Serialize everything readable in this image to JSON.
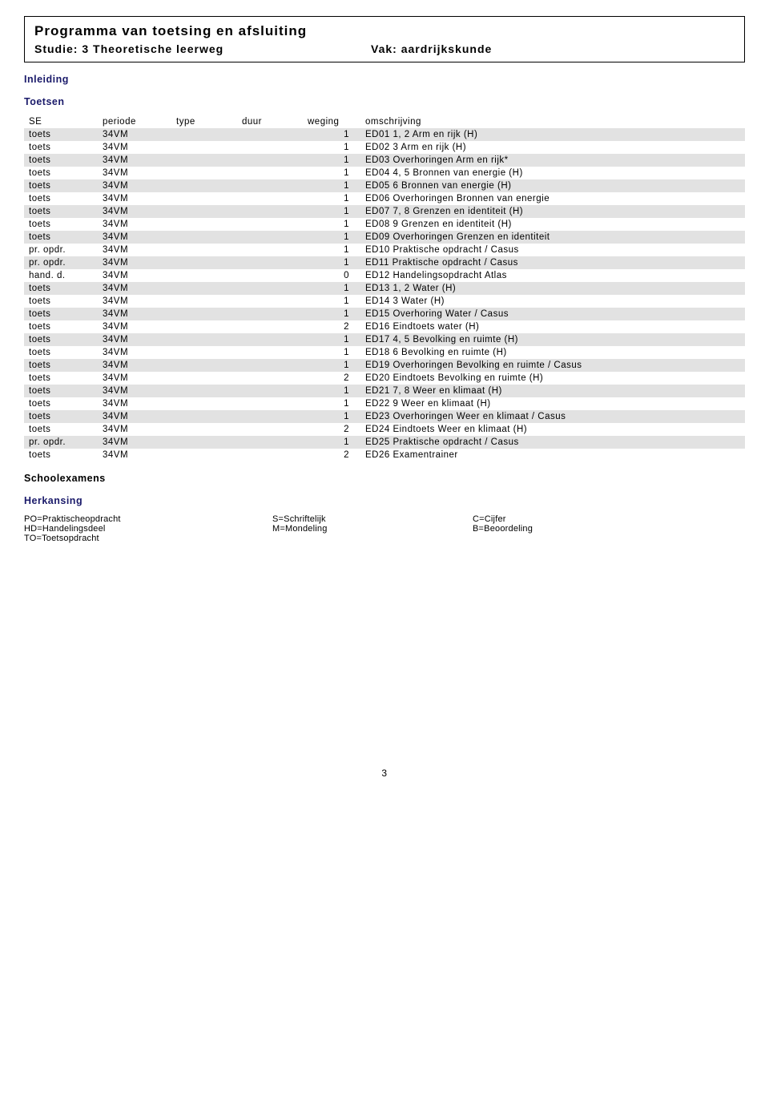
{
  "header": {
    "title": "Programma van toetsing en afsluiting",
    "studie_label": "Studie:",
    "studie_value": "3 Theoretische leerweg",
    "vak_label": "Vak:",
    "vak_value": "aardrijkskunde"
  },
  "sections": {
    "inleiding": "Inleiding",
    "toetsen": "Toetsen",
    "schoolexamens": "Schoolexamens",
    "herkansing": "Herkansing"
  },
  "columns": {
    "se": "SE",
    "periode": "periode",
    "type": "type",
    "duur": "duur",
    "weging": "weging",
    "omschrijving": "omschrijving"
  },
  "rows": [
    {
      "se": "toets",
      "periode": "34VM",
      "type": "",
      "duur": "",
      "weging": "1",
      "oms": "ED01 1, 2 Arm en rijk (H)"
    },
    {
      "se": "toets",
      "periode": "34VM",
      "type": "",
      "duur": "",
      "weging": "1",
      "oms": "ED02 3 Arm en rijk (H)"
    },
    {
      "se": "toets",
      "periode": "34VM",
      "type": "",
      "duur": "",
      "weging": "1",
      "oms": "ED03 Overhoringen Arm en rijk*"
    },
    {
      "se": "toets",
      "periode": "34VM",
      "type": "",
      "duur": "",
      "weging": "1",
      "oms": "ED04 4, 5 Bronnen van energie (H)"
    },
    {
      "se": "toets",
      "periode": "34VM",
      "type": "",
      "duur": "",
      "weging": "1",
      "oms": "ED05 6 Bronnen van energie (H)"
    },
    {
      "se": "toets",
      "periode": "34VM",
      "type": "",
      "duur": "",
      "weging": "1",
      "oms": "ED06 Overhoringen Bronnen van energie"
    },
    {
      "se": "toets",
      "periode": "34VM",
      "type": "",
      "duur": "",
      "weging": "1",
      "oms": "ED07 7, 8 Grenzen en identiteit (H)"
    },
    {
      "se": "toets",
      "periode": "34VM",
      "type": "",
      "duur": "",
      "weging": "1",
      "oms": "ED08 9 Grenzen en identiteit (H)"
    },
    {
      "se": "toets",
      "periode": "34VM",
      "type": "",
      "duur": "",
      "weging": "1",
      "oms": "ED09 Overhoringen Grenzen en identiteit"
    },
    {
      "se": "pr. opdr.",
      "periode": "34VM",
      "type": "",
      "duur": "",
      "weging": "1",
      "oms": "ED10 Praktische opdracht / Casus"
    },
    {
      "se": "pr. opdr.",
      "periode": "34VM",
      "type": "",
      "duur": "",
      "weging": "1",
      "oms": "ED11 Praktische opdracht / Casus"
    },
    {
      "se": "hand. d.",
      "periode": "34VM",
      "type": "",
      "duur": "",
      "weging": "0",
      "oms": "ED12 Handelingsopdracht Atlas"
    },
    {
      "se": "toets",
      "periode": "34VM",
      "type": "",
      "duur": "",
      "weging": "1",
      "oms": "ED13 1, 2 Water (H)"
    },
    {
      "se": "toets",
      "periode": "34VM",
      "type": "",
      "duur": "",
      "weging": "1",
      "oms": "ED14 3 Water (H)"
    },
    {
      "se": "toets",
      "periode": "34VM",
      "type": "",
      "duur": "",
      "weging": "1",
      "oms": "ED15 Overhoring Water / Casus"
    },
    {
      "se": "toets",
      "periode": "34VM",
      "type": "",
      "duur": "",
      "weging": "2",
      "oms": "ED16 Eindtoets water (H)"
    },
    {
      "se": "toets",
      "periode": "34VM",
      "type": "",
      "duur": "",
      "weging": "1",
      "oms": "ED17 4, 5 Bevolking en ruimte (H)"
    },
    {
      "se": "toets",
      "periode": "34VM",
      "type": "",
      "duur": "",
      "weging": "1",
      "oms": "ED18 6 Bevolking en ruimte (H)"
    },
    {
      "se": "toets",
      "periode": "34VM",
      "type": "",
      "duur": "",
      "weging": "1",
      "oms": "ED19 Overhoringen Bevolking en ruimte / Casus"
    },
    {
      "se": "toets",
      "periode": "34VM",
      "type": "",
      "duur": "",
      "weging": "2",
      "oms": "ED20 Eindtoets Bevolking en ruimte (H)"
    },
    {
      "se": "toets",
      "periode": "34VM",
      "type": "",
      "duur": "",
      "weging": "1",
      "oms": "ED21 7, 8 Weer en klimaat (H)"
    },
    {
      "se": "toets",
      "periode": "34VM",
      "type": "",
      "duur": "",
      "weging": "1",
      "oms": "ED22 9 Weer en klimaat (H)"
    },
    {
      "se": "toets",
      "periode": "34VM",
      "type": "",
      "duur": "",
      "weging": "1",
      "oms": "ED23 Overhoringen Weer en klimaat / Casus"
    },
    {
      "se": "toets",
      "periode": "34VM",
      "type": "",
      "duur": "",
      "weging": "2",
      "oms": "ED24 Eindtoets Weer en klimaat (H)"
    },
    {
      "se": "pr. opdr.",
      "periode": "34VM",
      "type": "",
      "duur": "",
      "weging": "1",
      "oms": "ED25 Praktische opdracht / Casus"
    },
    {
      "se": "toets",
      "periode": "34VM",
      "type": "",
      "duur": "",
      "weging": "2",
      "oms": "ED26 Examentrainer"
    }
  ],
  "legend": {
    "po": "PO=Praktischeopdracht",
    "hd": "HD=Handelingsdeel",
    "to": "TO=Toetsopdracht",
    "s": "S=Schriftelijk",
    "m": "M=Mondeling",
    "c": "C=Cijfer",
    "b": "B=Beoordeling"
  },
  "page_number": "3"
}
